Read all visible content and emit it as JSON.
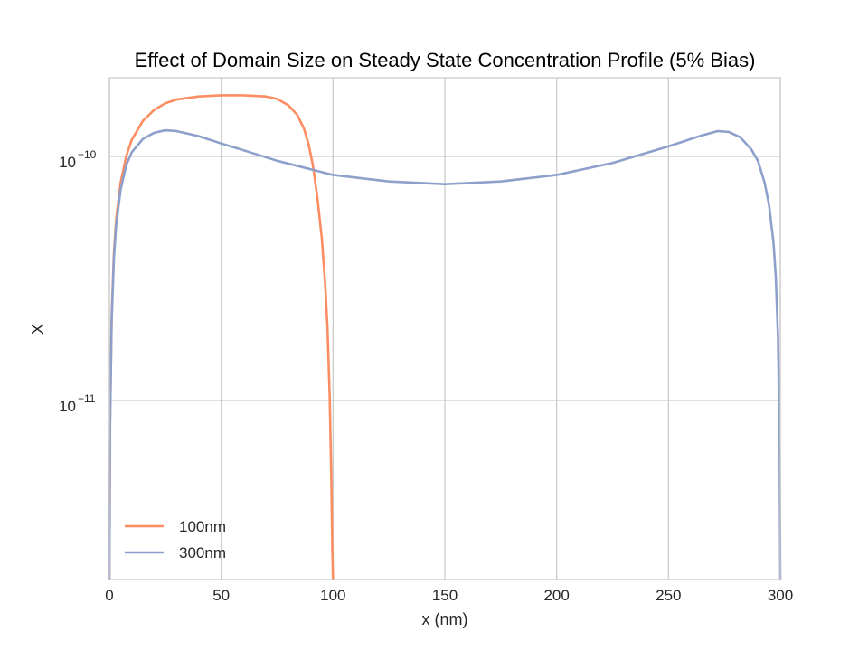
{
  "chart_data": {
    "type": "line",
    "title": "Effect of Domain Size on Steady State Concentration Profile (5% Bias)",
    "xlabel": "x (nm)",
    "ylabel": "X",
    "xlim": [
      0,
      300
    ],
    "ylim": [
      1.85e-12,
      2.1e-10
    ],
    "yscale": "log",
    "x_ticks": [
      0,
      50,
      100,
      150,
      200,
      250,
      300
    ],
    "x_tick_labels": [
      "0",
      "50",
      "100",
      "150",
      "200",
      "250",
      "300"
    ],
    "y_ticks": [
      {
        "value": 1e-11,
        "base": "10",
        "exponent": "−11"
      },
      {
        "value": 1e-10,
        "base": "10",
        "exponent": "−10"
      }
    ],
    "grid": true,
    "legend_position": "lower-left",
    "series": [
      {
        "name": "100nm",
        "color": "#fc8d62",
        "points": [
          [
            0,
            1.85e-12
          ],
          [
            0.3,
            8e-12
          ],
          [
            1,
            2.2e-11
          ],
          [
            2,
            4e-11
          ],
          [
            3,
            5.5e-11
          ],
          [
            5,
            7.8e-11
          ],
          [
            7.5,
            1e-10
          ],
          [
            10,
            1.17e-10
          ],
          [
            15,
            1.4e-10
          ],
          [
            20,
            1.55e-10
          ],
          [
            25,
            1.65e-10
          ],
          [
            30,
            1.71e-10
          ],
          [
            40,
            1.76e-10
          ],
          [
            50,
            1.78e-10
          ],
          [
            60,
            1.78e-10
          ],
          [
            70,
            1.76e-10
          ],
          [
            75,
            1.72e-10
          ],
          [
            80,
            1.62e-10
          ],
          [
            84,
            1.48e-10
          ],
          [
            87,
            1.3e-10
          ],
          [
            89,
            1.13e-10
          ],
          [
            91,
            9.2e-11
          ],
          [
            93,
            6.8e-11
          ],
          [
            95,
            4.6e-11
          ],
          [
            96.5,
            3e-11
          ],
          [
            97.5,
            2e-11
          ],
          [
            98.5,
            1.05e-11
          ],
          [
            99.2,
            5e-12
          ],
          [
            99.7,
            2.4e-12
          ],
          [
            100,
            1.85e-12
          ]
        ]
      },
      {
        "name": "300nm",
        "color": "#8da0cb",
        "points": [
          [
            0,
            1.85e-12
          ],
          [
            0.3,
            8e-12
          ],
          [
            1,
            2.1e-11
          ],
          [
            2,
            3.8e-11
          ],
          [
            3,
            5.2e-11
          ],
          [
            5,
            7.3e-11
          ],
          [
            7.5,
            9.2e-11
          ],
          [
            10,
            1.04e-10
          ],
          [
            15,
            1.18e-10
          ],
          [
            20,
            1.25e-10
          ],
          [
            25,
            1.28e-10
          ],
          [
            30,
            1.27e-10
          ],
          [
            40,
            1.21e-10
          ],
          [
            50,
            1.13e-10
          ],
          [
            60,
            1.06e-10
          ],
          [
            75,
            9.6e-11
          ],
          [
            100,
            8.4e-11
          ],
          [
            125,
            7.9e-11
          ],
          [
            150,
            7.7e-11
          ],
          [
            175,
            7.9e-11
          ],
          [
            200,
            8.4e-11
          ],
          [
            225,
            9.4e-11
          ],
          [
            250,
            1.1e-10
          ],
          [
            265,
            1.22e-10
          ],
          [
            272,
            1.27e-10
          ],
          [
            277,
            1.26e-10
          ],
          [
            282,
            1.2e-10
          ],
          [
            287,
            1.07e-10
          ],
          [
            290,
            9.6e-11
          ],
          [
            293,
            7.8e-11
          ],
          [
            295,
            6.3e-11
          ],
          [
            297,
            4.4e-11
          ],
          [
            298,
            3.2e-11
          ],
          [
            299,
            1.8e-11
          ],
          [
            299.7,
            6.5e-12
          ],
          [
            300,
            1.85e-12
          ]
        ]
      }
    ]
  }
}
